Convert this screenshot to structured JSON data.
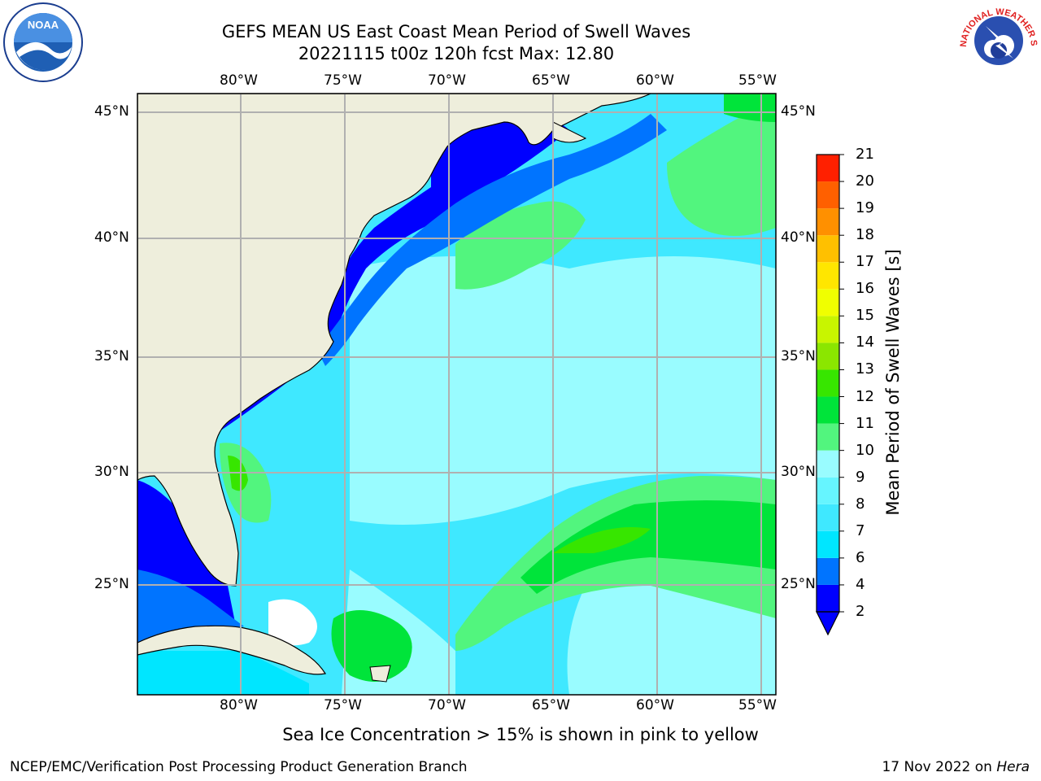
{
  "title": {
    "line1": "GEFS MEAN US East Coast Mean Period of Swell Waves",
    "line2": "20221115 t00z 120h fcst   Max: 12.80"
  },
  "map": {
    "lon_labels": [
      "80°W",
      "75°W",
      "70°W",
      "65°W",
      "60°W",
      "55°W"
    ],
    "lat_labels": [
      "45°N",
      "40°N",
      "35°N",
      "30°N",
      "25°N"
    ],
    "lon_range": [
      -85,
      -55
    ],
    "lat_range": [
      20.5,
      46
    ],
    "land_color": "#eeeedc",
    "grid_color": "#b0b0b0"
  },
  "colorbar": {
    "title": "Mean Period of Swell Waves [s]",
    "levels": [
      "2",
      "4",
      "6",
      "7",
      "8",
      "9",
      "10",
      "11",
      "12",
      "13",
      "14",
      "15",
      "16",
      "17",
      "18",
      "19",
      "20",
      "21"
    ],
    "colors": [
      "#0000ff",
      "#0074ff",
      "#00e6ff",
      "#3fe8ff",
      "#66f5ff",
      "#99fcff",
      "#52f57e",
      "#00e43a",
      "#37e600",
      "#8be600",
      "#c8f500",
      "#f0ff00",
      "#ffe600",
      "#ffc000",
      "#ff9000",
      "#ff6000",
      "#ff2000"
    ],
    "extend_min_color": "#0000ff"
  },
  "footer": {
    "note": "Sea Ice Concentration > 15% is shown in pink to yellow",
    "left": "NCEP/EMC/Verification Post Processing Product Generation Branch",
    "right_date": "17 Nov 2022 on ",
    "right_host": "Hera"
  },
  "logos": {
    "noaa_text": "NOAA",
    "nws_text": "NATIONAL WEATHER SERVICE"
  }
}
